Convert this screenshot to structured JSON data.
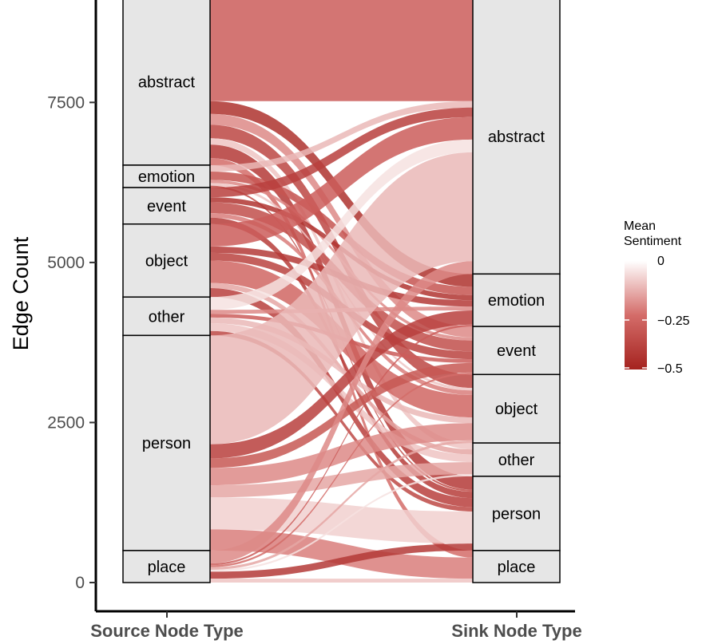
{
  "chart_data": {
    "type": "alluvial",
    "ylabel": "Edge Count",
    "xlabel": "",
    "x_categories": [
      "Source Node Type",
      "Sink Node Type"
    ],
    "ylim": [
      0,
      9050
    ],
    "y_ticks": [
      0,
      2500,
      5000,
      7500
    ],
    "y_tick_labels": [
      "0",
      "2500",
      "5000",
      "7500"
    ],
    "legend": {
      "title": "Mean\nSentiment",
      "title_lines": [
        "Mean",
        "Sentiment"
      ],
      "ticks": [
        0,
        -0.25,
        -0.5
      ],
      "tick_labels": [
        "0",
        "−0.25",
        "−0.5"
      ],
      "color_low": "#a5231f",
      "color_mid": "#d46c69",
      "color_high": "#ffffff",
      "placement": "right"
    },
    "source_nodes": [
      {
        "name": "abstract",
        "value": 2600
      },
      {
        "name": "emotion",
        "value": 350
      },
      {
        "name": "event",
        "value": 570
      },
      {
        "name": "object",
        "value": 1140
      },
      {
        "name": "other",
        "value": 600
      },
      {
        "name": "person",
        "value": 3360
      },
      {
        "name": "place",
        "value": 500
      }
    ],
    "sink_nodes": [
      {
        "name": "abstract",
        "value": 4300
      },
      {
        "name": "emotion",
        "value": 820
      },
      {
        "name": "event",
        "value": 750
      },
      {
        "name": "object",
        "value": 1070
      },
      {
        "name": "other",
        "value": 520
      },
      {
        "name": "person",
        "value": 1160
      },
      {
        "name": "place",
        "value": 500
      }
    ],
    "flows": [
      {
        "source": "abstract",
        "sink": "abstract",
        "value": 1600,
        "sentiment": -0.3
      },
      {
        "source": "abstract",
        "sink": "emotion",
        "value": 200,
        "sentiment": -0.45
      },
      {
        "source": "abstract",
        "sink": "event",
        "value": 170,
        "sentiment": -0.2
      },
      {
        "source": "abstract",
        "sink": "object",
        "value": 210,
        "sentiment": -0.38
      },
      {
        "source": "abstract",
        "sink": "other",
        "value": 100,
        "sentiment": -0.1
      },
      {
        "source": "abstract",
        "sink": "person",
        "value": 210,
        "sentiment": -0.42
      },
      {
        "source": "abstract",
        "sink": "place",
        "value": 110,
        "sentiment": -0.25
      },
      {
        "source": "emotion",
        "sink": "abstract",
        "value": 100,
        "sentiment": -0.12
      },
      {
        "source": "emotion",
        "sink": "emotion",
        "value": 130,
        "sentiment": -0.33
      },
      {
        "source": "emotion",
        "sink": "event",
        "value": 50,
        "sentiment": -0.2
      },
      {
        "source": "emotion",
        "sink": "object",
        "value": 40,
        "sentiment": -0.1
      },
      {
        "source": "emotion",
        "sink": "person",
        "value": 30,
        "sentiment": -0.36
      },
      {
        "source": "event",
        "sink": "abstract",
        "value": 150,
        "sentiment": -0.4
      },
      {
        "source": "event",
        "sink": "emotion",
        "value": 80,
        "sentiment": -0.44
      },
      {
        "source": "event",
        "sink": "event",
        "value": 170,
        "sentiment": -0.35
      },
      {
        "source": "event",
        "sink": "object",
        "value": 70,
        "sentiment": -0.22
      },
      {
        "source": "event",
        "sink": "person",
        "value": 100,
        "sentiment": -0.41
      },
      {
        "source": "object",
        "sink": "abstract",
        "value": 350,
        "sentiment": -0.3
      },
      {
        "source": "object",
        "sink": "emotion",
        "value": 100,
        "sentiment": -0.42
      },
      {
        "source": "object",
        "sink": "event",
        "value": 120,
        "sentiment": -0.39
      },
      {
        "source": "object",
        "sink": "object",
        "value": 350,
        "sentiment": -0.27
      },
      {
        "source": "object",
        "sink": "other",
        "value": 80,
        "sentiment": -0.15
      },
      {
        "source": "object",
        "sink": "person",
        "value": 140,
        "sentiment": -0.4
      },
      {
        "source": "other",
        "sink": "abstract",
        "value": 200,
        "sentiment": -0.05
      },
      {
        "source": "other",
        "sink": "emotion",
        "value": 60,
        "sentiment": -0.2
      },
      {
        "source": "other",
        "sink": "event",
        "value": 60,
        "sentiment": -0.3
      },
      {
        "source": "other",
        "sink": "object",
        "value": 90,
        "sentiment": -0.12
      },
      {
        "source": "other",
        "sink": "other",
        "value": 120,
        "sentiment": -0.1
      },
      {
        "source": "other",
        "sink": "person",
        "value": 70,
        "sentiment": -0.37
      },
      {
        "source": "person",
        "sink": "abstract",
        "value": 1700,
        "sentiment": -0.12
      },
      {
        "source": "person",
        "sink": "emotion",
        "value": 220,
        "sentiment": -0.4
      },
      {
        "source": "person",
        "sink": "event",
        "value": 150,
        "sentiment": -0.32
      },
      {
        "source": "person",
        "sink": "object",
        "value": 270,
        "sentiment": -0.2
      },
      {
        "source": "person",
        "sink": "other",
        "value": 190,
        "sentiment": -0.15
      },
      {
        "source": "person",
        "sink": "person",
        "value": 500,
        "sentiment": -0.08
      },
      {
        "source": "person",
        "sink": "place",
        "value": 330,
        "sentiment": -0.22
      },
      {
        "source": "place",
        "sink": "abstract",
        "value": 200,
        "sentiment": -0.2
      },
      {
        "source": "place",
        "sink": "emotion",
        "value": 30,
        "sentiment": -0.3
      },
      {
        "source": "place",
        "sink": "event",
        "value": 30,
        "sentiment": -0.25
      },
      {
        "source": "place",
        "sink": "object",
        "value": 40,
        "sentiment": -0.15
      },
      {
        "source": "place",
        "sink": "other",
        "value": 30,
        "sentiment": -0.05
      },
      {
        "source": "place",
        "sink": "person",
        "value": 110,
        "sentiment": -0.42
      },
      {
        "source": "place",
        "sink": "place",
        "value": 60,
        "sentiment": -0.1
      }
    ]
  }
}
